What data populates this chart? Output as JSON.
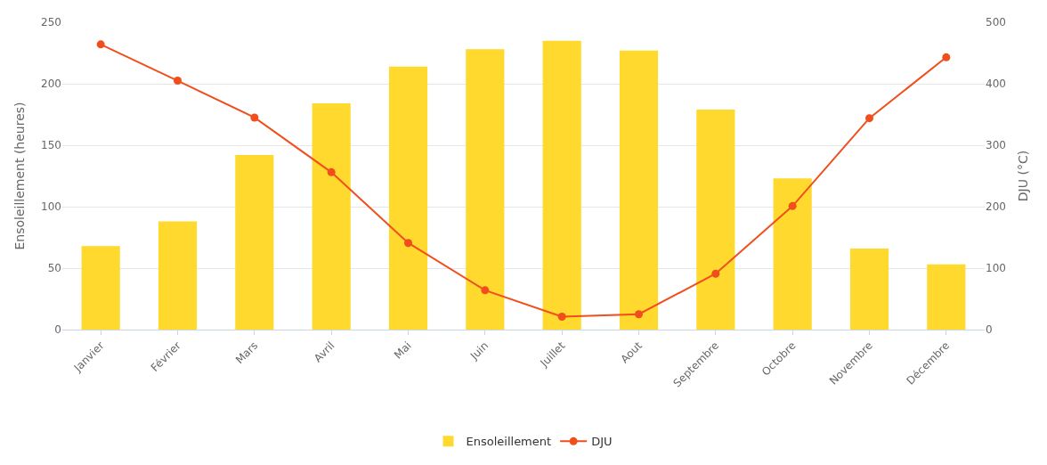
{
  "chart_data": {
    "type": "bar",
    "categories": [
      "Janvier",
      "Février",
      "Mars",
      "Avril",
      "Mai",
      "Juin",
      "Juillet",
      "Aout",
      "Septembre",
      "Octobre",
      "Novembre",
      "Décembre"
    ],
    "series": [
      {
        "name": "Ensoleillement",
        "color": "#ffd92e",
        "values": [
          68,
          88,
          142,
          184,
          214,
          228,
          235,
          227,
          179,
          123,
          66,
          53
        ]
      },
      {
        "name": "DJU",
        "type": "line",
        "axis": "y2",
        "color": "#f04e1c",
        "marker": "circle",
        "values": [
          464,
          405,
          345,
          256,
          141,
          64,
          21,
          25,
          91,
          201,
          344,
          443
        ]
      }
    ],
    "ylabel": "Ensoleillement (heures)",
    "y2label": "DJU (°C)",
    "ylim": [
      0,
      250
    ],
    "yticks": [
      0,
      50,
      100,
      150,
      200,
      250
    ],
    "y2lim": [
      0,
      500
    ],
    "y2ticks": [
      0,
      100,
      200,
      300,
      400,
      500
    ],
    "grid": "y",
    "legend": "bottom"
  }
}
